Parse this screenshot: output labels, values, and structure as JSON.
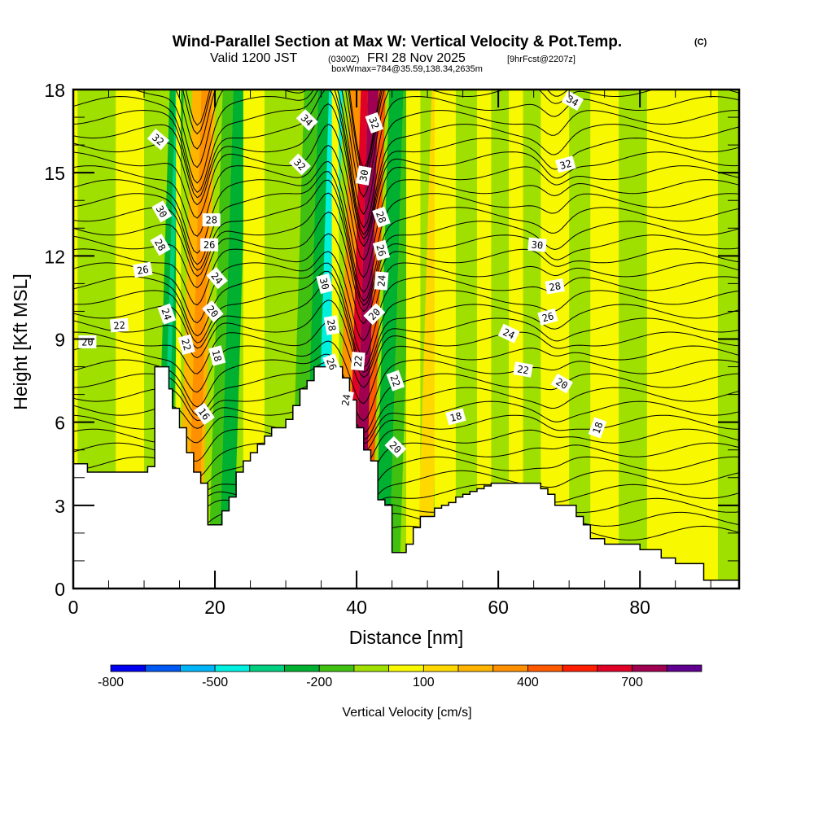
{
  "chart_data": {
    "type": "heatmap",
    "title": "Wind-Parallel Section at Max W: Vertical Velocity & Pot.Temp.",
    "copyright_mark": "(C)",
    "subtitle_parts": {
      "valid": "Valid 1200 JST",
      "utc": "(0300Z)",
      "date": "FRI 28 Nov 2025",
      "forecast": "[9hrFcst@2207z]"
    },
    "subtitle2": "boxWmax=784@35.59,138.34,2635m",
    "xlabel": "Distance [nm]",
    "ylabel": "Height [Kft MSL]",
    "xlim": [
      0,
      94
    ],
    "ylim": [
      0,
      18
    ],
    "xticks": [
      0,
      20,
      40,
      60,
      80
    ],
    "xticks_minor_step": 5,
    "yticks": [
      0,
      3,
      6,
      9,
      12,
      15,
      18
    ],
    "yticks_minor_step": 1,
    "colorbar": {
      "label": "Vertical Velocity [cm/s]",
      "tick_labels": [
        "-800",
        "-500",
        "-200",
        "100",
        "400",
        "700"
      ],
      "levels": [
        -800,
        -700,
        -600,
        -500,
        -400,
        -300,
        -200,
        -100,
        0,
        100,
        200,
        300,
        400,
        500,
        600,
        700,
        800
      ],
      "colors": [
        "#0000f0",
        "#0058f4",
        "#00b4f8",
        "#00f0e0",
        "#00d080",
        "#00b030",
        "#40c010",
        "#a0e000",
        "#f8f800",
        "#ffd800",
        "#ffb400",
        "#ff9000",
        "#ff5a00",
        "#ff1e00",
        "#e00028",
        "#a00050",
        "#600090"
      ]
    },
    "fill_bands": [
      {
        "x_range_nm": [
          0,
          0.6
        ],
        "w_cms": 50
      },
      {
        "x_range_nm": [
          6,
          10
        ],
        "w_cms": 50
      },
      {
        "x_range_nm": [
          12,
          14
        ],
        "w_cms": -250
      },
      {
        "x_range_nm": [
          12.8,
          13.4
        ],
        "w_cms": -350
      },
      {
        "x_range_nm": [
          14.5,
          15.2
        ],
        "w_cms": 50
      },
      {
        "x_range_nm": [
          15.2,
          18.5
        ],
        "w_cms": 250
      },
      {
        "x_range_nm": [
          16.5,
          18
        ],
        "w_cms": 350
      },
      {
        "x_range_nm": [
          19.5,
          21
        ],
        "w_cms": -150
      },
      {
        "x_range_nm": [
          21,
          23
        ],
        "w_cms": -250
      },
      {
        "x_range_nm": [
          24,
          27
        ],
        "w_cms": 50
      },
      {
        "x_range_nm": [
          31,
          33
        ],
        "w_cms": -150
      },
      {
        "x_range_nm": [
          33,
          35
        ],
        "w_cms": -250
      },
      {
        "x_range_nm": [
          34.5,
          36.5
        ],
        "w_cms": -450
      },
      {
        "x_range_nm": [
          36.5,
          37.5
        ],
        "w_cms": 50
      },
      {
        "x_range_nm": [
          37.5,
          39
        ],
        "w_cms": 350
      },
      {
        "x_range_nm": [
          39,
          40
        ],
        "w_cms": 650
      },
      {
        "x_range_nm": [
          40,
          41.5
        ],
        "w_cms": 750
      },
      {
        "x_range_nm": [
          41.5,
          42.5
        ],
        "w_cms": 450
      },
      {
        "x_range_nm": [
          43,
          45
        ],
        "w_cms": -250
      },
      {
        "x_range_nm": [
          45,
          46.5
        ],
        "w_cms": -150
      },
      {
        "x_range_nm": [
          47,
          49
        ],
        "w_cms": 50
      },
      {
        "x_range_nm": [
          49,
          51
        ],
        "w_cms": 150
      },
      {
        "x_range_nm": [
          51,
          54
        ],
        "w_cms": 50
      },
      {
        "x_range_nm": [
          57,
          59
        ],
        "w_cms": 50
      },
      {
        "x_range_nm": [
          61.5,
          63.5
        ],
        "w_cms": 50
      },
      {
        "x_range_nm": [
          66,
          70
        ],
        "w_cms": 50
      },
      {
        "x_range_nm": [
          73,
          77
        ],
        "w_cms": 50
      },
      {
        "x_range_nm": [
          81,
          91
        ],
        "w_cms": 50
      }
    ],
    "theta_contour_labels": [
      {
        "text": "32"
      },
      {
        "text": "30"
      },
      {
        "text": "28"
      },
      {
        "text": "26"
      },
      {
        "text": "24"
      },
      {
        "text": "22"
      },
      {
        "text": "20"
      },
      {
        "text": "22"
      },
      {
        "text": "28"
      },
      {
        "text": "26"
      },
      {
        "text": "24"
      },
      {
        "text": "20"
      },
      {
        "text": "18"
      },
      {
        "text": "16"
      },
      {
        "text": "34"
      },
      {
        "text": "32"
      },
      {
        "text": "30"
      },
      {
        "text": "28"
      },
      {
        "text": "26"
      },
      {
        "text": "24"
      },
      {
        "text": "32"
      },
      {
        "text": "30"
      },
      {
        "text": "28"
      },
      {
        "text": "26"
      },
      {
        "text": "24"
      },
      {
        "text": "20"
      },
      {
        "text": "22"
      },
      {
        "text": "22"
      },
      {
        "text": "20"
      },
      {
        "text": "18"
      },
      {
        "text": "34"
      },
      {
        "text": "32"
      },
      {
        "text": "30"
      },
      {
        "text": "28"
      },
      {
        "text": "26"
      },
      {
        "text": "24"
      },
      {
        "text": "22"
      },
      {
        "text": "20"
      },
      {
        "text": "18"
      }
    ],
    "terrain_profile": {
      "x_nm": [
        0,
        2,
        4,
        7.5,
        10.5,
        11.5,
        12.5,
        13.5,
        14,
        14.5,
        15,
        16,
        17,
        18,
        19,
        20,
        21,
        22,
        23,
        24,
        25,
        26,
        27,
        28,
        29,
        30,
        31,
        32,
        33,
        34,
        35,
        36,
        37,
        38,
        39,
        40,
        41,
        42,
        43,
        44,
        45,
        46,
        47,
        48,
        49,
        50,
        51,
        52,
        53,
        54,
        55,
        56,
        57,
        58,
        59,
        60,
        61,
        62,
        63,
        64,
        65,
        66,
        67,
        68,
        69,
        70,
        71,
        72,
        73,
        74,
        75,
        76,
        77,
        78,
        79,
        80,
        81,
        82,
        83,
        84,
        85,
        86,
        87,
        88,
        89,
        90,
        91,
        92,
        93,
        94
      ],
      "height_kft": [
        4.5,
        4.2,
        4.2,
        4.2,
        4.4,
        8.0,
        8.0,
        7.2,
        6.5,
        6.5,
        5.8,
        4.9,
        4.2,
        3.8,
        2.3,
        2.3,
        2.8,
        3.3,
        4.2,
        4.6,
        4.9,
        5.2,
        5.5,
        5.8,
        5.8,
        6.1,
        6.6,
        7.2,
        7.5,
        8.0,
        8.0,
        8.0,
        8.0,
        7.6,
        6.8,
        5.8,
        5.0,
        4.6,
        3.2,
        3.0,
        1.3,
        1.3,
        1.6,
        2.2,
        2.6,
        2.6,
        2.9,
        3.0,
        3.1,
        3.3,
        3.4,
        3.5,
        3.6,
        3.7,
        3.8,
        3.8,
        3.8,
        3.8,
        3.8,
        3.8,
        3.8,
        3.6,
        3.4,
        3.0,
        3.0,
        3.0,
        2.6,
        2.3,
        1.8,
        1.8,
        1.6,
        1.6,
        1.6,
        1.6,
        1.6,
        1.4,
        1.4,
        1.4,
        1.1,
        1.1,
        0.9,
        0.9,
        0.9,
        0.9,
        0.3,
        0.3,
        0.3,
        0.3,
        0.3,
        0.3
      ]
    }
  }
}
